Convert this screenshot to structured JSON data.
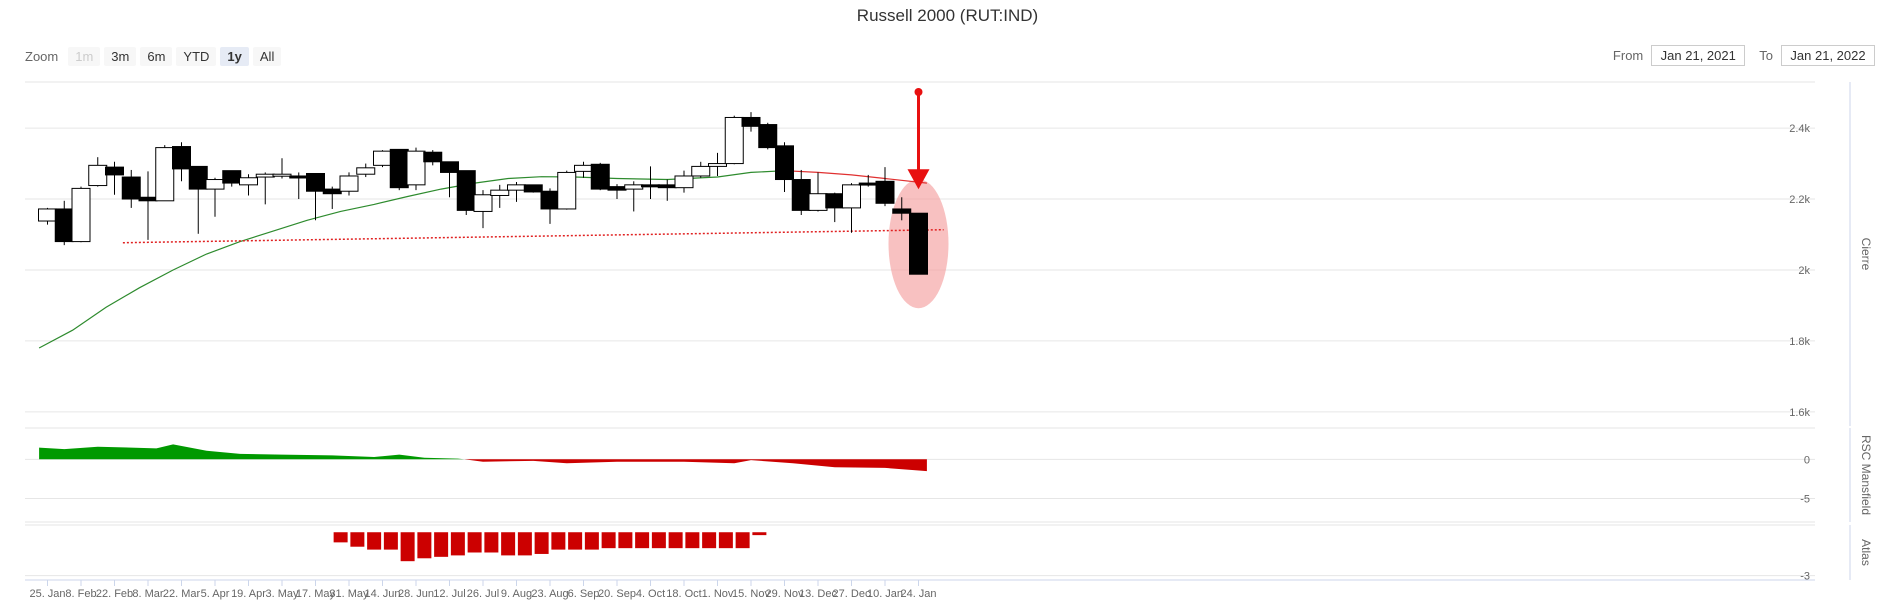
{
  "title": "Russell 2000 (RUT:IND)",
  "zoom": {
    "label": "Zoom",
    "buttons": [
      {
        "label": "1m",
        "state": "disabled"
      },
      {
        "label": "3m",
        "state": "normal"
      },
      {
        "label": "6m",
        "state": "normal"
      },
      {
        "label": "YTD",
        "state": "normal"
      },
      {
        "label": "1y",
        "state": "active"
      },
      {
        "label": "All",
        "state": "normal"
      }
    ]
  },
  "range": {
    "from_label": "From",
    "from_value": "Jan 21, 2021",
    "to_label": "To",
    "to_value": "Jan 21, 2022"
  },
  "colors": {
    "up_fill": "#ffffff",
    "down_fill": "#000000",
    "sma_green": "#2e8b2e",
    "sma_red": "#e03030",
    "support_dotted": "#e02020",
    "mansfield_pos": "#009900",
    "mansfield_neg": "#cc0000",
    "atlas": "#cc0000",
    "highlight": "#f4a0a0",
    "arrow": "#e81010"
  },
  "chart_data": [
    {
      "type": "candlestick",
      "panel": "price",
      "ylabel": "Cierre",
      "y_ticks": [
        "2.4k",
        "2.2k",
        "2k",
        "1.8k",
        "1.6k"
      ],
      "y_tick_values": [
        2400,
        2200,
        2000,
        1800,
        1600
      ],
      "ylim": [
        1560,
        2530
      ],
      "x_ticks": [
        "25. Jan",
        "8. Feb",
        "22. Feb",
        "8. Mar",
        "22. Mar",
        "5. Apr",
        "19. Apr",
        "3. May",
        "17. May",
        "31. May",
        "14. Jun",
        "28. Jun",
        "12. Jul",
        "26. Jul",
        "9. Aug",
        "23. Aug",
        "6. Sep",
        "20. Sep",
        "4. Oct",
        "18. Oct",
        "1. Nov",
        "15. Nov",
        "29. Nov",
        "13. Dec",
        "27. Dec",
        "10. Jan",
        "24. Jan"
      ],
      "candles": [
        {
          "o": 2138,
          "h": 2175,
          "l": 2128,
          "c": 2172
        },
        {
          "o": 2172,
          "h": 2195,
          "l": 2070,
          "c": 2080
        },
        {
          "o": 2080,
          "h": 2235,
          "l": 2078,
          "c": 2230
        },
        {
          "o": 2238,
          "h": 2318,
          "l": 2235,
          "c": 2295
        },
        {
          "o": 2290,
          "h": 2305,
          "l": 2212,
          "c": 2268
        },
        {
          "o": 2262,
          "h": 2282,
          "l": 2175,
          "c": 2200
        },
        {
          "o": 2205,
          "h": 2278,
          "l": 2085,
          "c": 2195
        },
        {
          "o": 2195,
          "h": 2352,
          "l": 2195,
          "c": 2345
        },
        {
          "o": 2348,
          "h": 2360,
          "l": 2250,
          "c": 2285
        },
        {
          "o": 2292,
          "h": 2292,
          "l": 2102,
          "c": 2228
        },
        {
          "o": 2228,
          "h": 2260,
          "l": 2150,
          "c": 2255
        },
        {
          "o": 2280,
          "h": 2280,
          "l": 2235,
          "c": 2245
        },
        {
          "o": 2240,
          "h": 2270,
          "l": 2210,
          "c": 2260
        },
        {
          "o": 2262,
          "h": 2275,
          "l": 2185,
          "c": 2270
        },
        {
          "o": 2265,
          "h": 2315,
          "l": 2258,
          "c": 2270
        },
        {
          "o": 2265,
          "h": 2275,
          "l": 2200,
          "c": 2262
        },
        {
          "o": 2272,
          "h": 2272,
          "l": 2140,
          "c": 2222
        },
        {
          "o": 2228,
          "h": 2235,
          "l": 2172,
          "c": 2215
        },
        {
          "o": 2222,
          "h": 2275,
          "l": 2210,
          "c": 2265
        },
        {
          "o": 2270,
          "h": 2300,
          "l": 2262,
          "c": 2288
        },
        {
          "o": 2295,
          "h": 2338,
          "l": 2290,
          "c": 2335
        },
        {
          "o": 2340,
          "h": 2340,
          "l": 2225,
          "c": 2232
        },
        {
          "o": 2240,
          "h": 2345,
          "l": 2225,
          "c": 2335
        },
        {
          "o": 2332,
          "h": 2338,
          "l": 2295,
          "c": 2305
        },
        {
          "o": 2305,
          "h": 2305,
          "l": 2205,
          "c": 2275
        },
        {
          "o": 2280,
          "h": 2280,
          "l": 2155,
          "c": 2168
        },
        {
          "o": 2165,
          "h": 2225,
          "l": 2118,
          "c": 2212
        },
        {
          "o": 2210,
          "h": 2240,
          "l": 2175,
          "c": 2225
        },
        {
          "o": 2225,
          "h": 2248,
          "l": 2192,
          "c": 2240
        },
        {
          "o": 2240,
          "h": 2240,
          "l": 2218,
          "c": 2220
        },
        {
          "o": 2222,
          "h": 2230,
          "l": 2130,
          "c": 2172
        },
        {
          "o": 2172,
          "h": 2280,
          "l": 2170,
          "c": 2275
        },
        {
          "o": 2278,
          "h": 2305,
          "l": 2260,
          "c": 2295
        },
        {
          "o": 2298,
          "h": 2302,
          "l": 2225,
          "c": 2228
        },
        {
          "o": 2235,
          "h": 2242,
          "l": 2200,
          "c": 2225
        },
        {
          "o": 2228,
          "h": 2250,
          "l": 2165,
          "c": 2240
        },
        {
          "o": 2240,
          "h": 2292,
          "l": 2200,
          "c": 2235
        },
        {
          "o": 2240,
          "h": 2255,
          "l": 2195,
          "c": 2232
        },
        {
          "o": 2232,
          "h": 2280,
          "l": 2218,
          "c": 2265
        },
        {
          "o": 2265,
          "h": 2305,
          "l": 2260,
          "c": 2292
        },
        {
          "o": 2292,
          "h": 2330,
          "l": 2265,
          "c": 2300
        },
        {
          "o": 2300,
          "h": 2435,
          "l": 2298,
          "c": 2430
        },
        {
          "o": 2430,
          "h": 2445,
          "l": 2390,
          "c": 2405
        },
        {
          "o": 2410,
          "h": 2415,
          "l": 2340,
          "c": 2345
        },
        {
          "o": 2350,
          "h": 2360,
          "l": 2220,
          "c": 2255
        },
        {
          "o": 2255,
          "h": 2282,
          "l": 2155,
          "c": 2168
        },
        {
          "o": 2168,
          "h": 2275,
          "l": 2165,
          "c": 2215
        },
        {
          "o": 2215,
          "h": 2218,
          "l": 2135,
          "c": 2175
        },
        {
          "o": 2175,
          "h": 2245,
          "l": 2105,
          "c": 2240
        },
        {
          "o": 2245,
          "h": 2268,
          "l": 2235,
          "c": 2240
        },
        {
          "o": 2250,
          "h": 2290,
          "l": 2180,
          "c": 2188
        },
        {
          "o": 2172,
          "h": 2205,
          "l": 2140,
          "c": 2160
        },
        {
          "o": 2160,
          "h": 2160,
          "l": 1988,
          "c": 1988
        }
      ],
      "sma": [
        {
          "d": -0.5,
          "v": 1780
        },
        {
          "d": 1.5,
          "v": 1830
        },
        {
          "d": 3.5,
          "v": 1895
        },
        {
          "d": 5.5,
          "v": 1950
        },
        {
          "d": 7.5,
          "v": 2000
        },
        {
          "d": 9.5,
          "v": 2045
        },
        {
          "d": 11.5,
          "v": 2080
        },
        {
          "d": 13.5,
          "v": 2110
        },
        {
          "d": 15.5,
          "v": 2140
        },
        {
          "d": 17.5,
          "v": 2165
        },
        {
          "d": 19.5,
          "v": 2185
        },
        {
          "d": 21.5,
          "v": 2207
        },
        {
          "d": 23.5,
          "v": 2228
        },
        {
          "d": 25.5,
          "v": 2245
        },
        {
          "d": 27.5,
          "v": 2258
        },
        {
          "d": 29.5,
          "v": 2263
        },
        {
          "d": 31.5,
          "v": 2262
        },
        {
          "d": 34,
          "v": 2258
        },
        {
          "d": 37,
          "v": 2255
        },
        {
          "d": 40,
          "v": 2262
        },
        {
          "d": 42,
          "v": 2275
        },
        {
          "d": 44,
          "v": 2280
        },
        {
          "d": 46,
          "v": 2275
        },
        {
          "d": 48,
          "v": 2268
        },
        {
          "d": 50,
          "v": 2258
        },
        {
          "d": 52.5,
          "v": 2245
        }
      ],
      "sma_color_switch_d": 44.5,
      "support_level": 2105,
      "support_span_d": [
        4.5,
        53.5
      ],
      "highlight_candle_index": 52
    },
    {
      "type": "area",
      "panel": "rsc_mansfield",
      "ylabel": "RSC Mansfield",
      "y_ticks": [
        "0",
        "-5"
      ],
      "y_tick_values": [
        0,
        -5
      ],
      "ylim": [
        -8,
        4
      ],
      "points": [
        {
          "d": -0.5,
          "v": 1.5
        },
        {
          "d": 1,
          "v": 1.3
        },
        {
          "d": 3,
          "v": 1.6
        },
        {
          "d": 5,
          "v": 1.5
        },
        {
          "d": 6.5,
          "v": 1.4
        },
        {
          "d": 7.5,
          "v": 1.9
        },
        {
          "d": 9.5,
          "v": 1.1
        },
        {
          "d": 11.5,
          "v": 0.7
        },
        {
          "d": 14,
          "v": 0.6
        },
        {
          "d": 17,
          "v": 0.5
        },
        {
          "d": 19.5,
          "v": 0.3
        },
        {
          "d": 21,
          "v": 0.6
        },
        {
          "d": 22.5,
          "v": 0.2
        },
        {
          "d": 24.5,
          "v": 0.1
        },
        {
          "d": 26,
          "v": -0.3
        },
        {
          "d": 29,
          "v": -0.2
        },
        {
          "d": 31,
          "v": -0.5
        },
        {
          "d": 34,
          "v": -0.3
        },
        {
          "d": 38,
          "v": -0.3
        },
        {
          "d": 41,
          "v": -0.5
        },
        {
          "d": 42,
          "v": -0.1
        },
        {
          "d": 44.5,
          "v": -0.5
        },
        {
          "d": 47,
          "v": -1.0
        },
        {
          "d": 50,
          "v": -1.1
        },
        {
          "d": 52.5,
          "v": -1.5
        }
      ]
    },
    {
      "type": "column",
      "panel": "atlas",
      "ylabel": "Atlas",
      "y_ticks": [
        "-3"
      ],
      "y_tick_values": [
        -3
      ],
      "ylim": [
        -3.3,
        0.5
      ],
      "bars": [
        {
          "d": 17.5,
          "v": -0.7
        },
        {
          "d": 18.5,
          "v": -1.0
        },
        {
          "d": 19.5,
          "v": -1.2
        },
        {
          "d": 20.5,
          "v": -1.2
        },
        {
          "d": 21.5,
          "v": -2.0
        },
        {
          "d": 22.5,
          "v": -1.8
        },
        {
          "d": 23.5,
          "v": -1.7
        },
        {
          "d": 24.5,
          "v": -1.6
        },
        {
          "d": 25.5,
          "v": -1.4
        },
        {
          "d": 26.5,
          "v": -1.4
        },
        {
          "d": 27.5,
          "v": -1.6
        },
        {
          "d": 28.5,
          "v": -1.6
        },
        {
          "d": 29.5,
          "v": -1.5
        },
        {
          "d": 30.5,
          "v": -1.2
        },
        {
          "d": 31.5,
          "v": -1.2
        },
        {
          "d": 32.5,
          "v": -1.2
        },
        {
          "d": 33.5,
          "v": -1.1
        },
        {
          "d": 34.5,
          "v": -1.1
        },
        {
          "d": 35.5,
          "v": -1.1
        },
        {
          "d": 36.5,
          "v": -1.1
        },
        {
          "d": 37.5,
          "v": -1.1
        },
        {
          "d": 38.5,
          "v": -1.1
        },
        {
          "d": 39.5,
          "v": -1.1
        },
        {
          "d": 40.5,
          "v": -1.1
        },
        {
          "d": 41.5,
          "v": -1.1
        },
        {
          "d": 42.5,
          "v": -0.2
        }
      ]
    }
  ]
}
